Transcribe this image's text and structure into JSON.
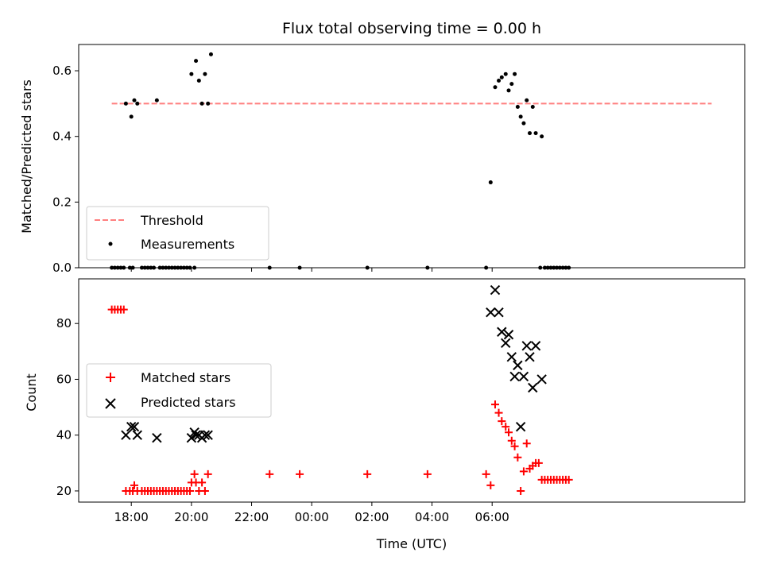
{
  "title": "Flux total observing time = 0.00 h",
  "colors": {
    "threshold": "#ff7f7f",
    "measurement": "#000000",
    "matched": "#ff0000",
    "predicted": "#000000"
  },
  "chart_data": [
    {
      "type": "scatter",
      "ylabel": "Matched/Predicted stars",
      "xlabel": "",
      "xlim": [
        -0.75,
        21.4
      ],
      "ylim": [
        0,
        0.68
      ],
      "x_unit": "hours since 17:00 UTC",
      "x_tick_values": [
        1,
        3,
        5,
        7,
        9,
        11,
        13
      ],
      "y_ticks": [
        "0.0",
        "0.2",
        "0.4",
        "0.6"
      ],
      "y_tick_values": [
        0,
        0.2,
        0.4,
        0.6
      ],
      "legend_position": "lower-left",
      "threshold": {
        "name": "Threshold",
        "value": 0.5,
        "x_range": [
          0.35,
          20.3
        ]
      },
      "series": [
        {
          "name": "Measurements",
          "points": [
            [
              0.35,
              0
            ],
            [
              0.45,
              0
            ],
            [
              0.55,
              0
            ],
            [
              0.65,
              0
            ],
            [
              0.75,
              0
            ],
            [
              0.82,
              0.5
            ],
            [
              0.95,
              0
            ],
            [
              1.05,
              0
            ],
            [
              1.0,
              0.46
            ],
            [
              1.1,
              0.51
            ],
            [
              1.2,
              0.5
            ],
            [
              1.35,
              0
            ],
            [
              1.45,
              0
            ],
            [
              1.55,
              0
            ],
            [
              1.65,
              0
            ],
            [
              1.75,
              0
            ],
            [
              1.85,
              0.51
            ],
            [
              1.95,
              0
            ],
            [
              2.05,
              0
            ],
            [
              2.15,
              0
            ],
            [
              2.25,
              0
            ],
            [
              2.35,
              0
            ],
            [
              2.45,
              0
            ],
            [
              2.55,
              0
            ],
            [
              2.65,
              0
            ],
            [
              2.75,
              0
            ],
            [
              2.85,
              0
            ],
            [
              2.95,
              0
            ],
            [
              3.0,
              0.59
            ],
            [
              3.1,
              0
            ],
            [
              3.15,
              0.63
            ],
            [
              3.25,
              0.57
            ],
            [
              3.35,
              0.5
            ],
            [
              3.45,
              0.59
            ],
            [
              3.55,
              0.5
            ],
            [
              3.65,
              0.65
            ],
            [
              5.6,
              0
            ],
            [
              6.6,
              0
            ],
            [
              8.85,
              0
            ],
            [
              10.85,
              0
            ],
            [
              12.8,
              0
            ],
            [
              12.95,
              0.26
            ],
            [
              13.1,
              0.55
            ],
            [
              13.22,
              0.57
            ],
            [
              13.32,
              0.58
            ],
            [
              13.45,
              0.59
            ],
            [
              13.55,
              0.54
            ],
            [
              13.65,
              0.56
            ],
            [
              13.75,
              0.59
            ],
            [
              13.85,
              0.49
            ],
            [
              13.95,
              0.46
            ],
            [
              14.05,
              0.44
            ],
            [
              14.15,
              0.51
            ],
            [
              14.25,
              0.41
            ],
            [
              14.35,
              0.49
            ],
            [
              14.45,
              0.41
            ],
            [
              14.6,
              0
            ],
            [
              14.65,
              0.4
            ],
            [
              14.75,
              0
            ],
            [
              14.85,
              0
            ],
            [
              14.95,
              0
            ],
            [
              15.05,
              0
            ],
            [
              15.15,
              0
            ],
            [
              15.25,
              0
            ],
            [
              15.35,
              0
            ],
            [
              15.45,
              0
            ],
            [
              15.55,
              0
            ]
          ]
        }
      ]
    },
    {
      "type": "scatter",
      "ylabel": "Count",
      "xlabel": "Time (UTC)",
      "xlim": [
        -0.75,
        21.4
      ],
      "ylim": [
        16,
        96
      ],
      "x_unit": "hours since 17:00 UTC",
      "x_ticks": [
        "18:00",
        "20:00",
        "22:00",
        "00:00",
        "02:00",
        "04:00",
        "06:00"
      ],
      "x_tick_values": [
        1,
        3,
        5,
        7,
        9,
        11,
        13
      ],
      "y_ticks": [
        "20",
        "40",
        "60",
        "80"
      ],
      "y_tick_values": [
        20,
        40,
        60,
        80
      ],
      "legend_position": "center-left",
      "series": [
        {
          "name": "Matched stars",
          "marker": "plus",
          "points": [
            [
              0.35,
              85
            ],
            [
              0.45,
              85
            ],
            [
              0.55,
              85
            ],
            [
              0.65,
              85
            ],
            [
              0.75,
              85
            ],
            [
              0.82,
              20
            ],
            [
              0.95,
              20
            ],
            [
              1.05,
              20
            ],
            [
              1.1,
              22
            ],
            [
              1.2,
              20
            ],
            [
              1.35,
              20
            ],
            [
              1.45,
              20
            ],
            [
              1.55,
              20
            ],
            [
              1.65,
              20
            ],
            [
              1.75,
              20
            ],
            [
              1.85,
              20
            ],
            [
              1.95,
              20
            ],
            [
              2.05,
              20
            ],
            [
              2.15,
              20
            ],
            [
              2.25,
              20
            ],
            [
              2.35,
              20
            ],
            [
              2.45,
              20
            ],
            [
              2.55,
              20
            ],
            [
              2.65,
              20
            ],
            [
              2.75,
              20
            ],
            [
              2.85,
              20
            ],
            [
              2.95,
              20
            ],
            [
              3.0,
              23
            ],
            [
              3.1,
              26
            ],
            [
              3.15,
              23
            ],
            [
              3.25,
              20
            ],
            [
              3.35,
              23
            ],
            [
              3.45,
              20
            ],
            [
              3.55,
              26
            ],
            [
              5.6,
              26
            ],
            [
              6.6,
              26
            ],
            [
              8.85,
              26
            ],
            [
              10.85,
              26
            ],
            [
              12.8,
              26
            ],
            [
              12.95,
              22
            ],
            [
              13.1,
              51
            ],
            [
              13.22,
              48
            ],
            [
              13.32,
              45
            ],
            [
              13.45,
              43
            ],
            [
              13.55,
              41
            ],
            [
              13.65,
              38
            ],
            [
              13.75,
              36
            ],
            [
              13.85,
              32
            ],
            [
              13.95,
              20
            ],
            [
              14.05,
              27
            ],
            [
              14.15,
              37
            ],
            [
              14.25,
              28
            ],
            [
              14.35,
              29
            ],
            [
              14.45,
              30
            ],
            [
              14.55,
              30
            ],
            [
              14.65,
              24
            ],
            [
              14.75,
              24
            ],
            [
              14.85,
              24
            ],
            [
              14.95,
              24
            ],
            [
              15.05,
              24
            ],
            [
              15.15,
              24
            ],
            [
              15.25,
              24
            ],
            [
              15.35,
              24
            ],
            [
              15.45,
              24
            ],
            [
              15.55,
              24
            ]
          ]
        },
        {
          "name": "Predicted stars",
          "marker": "x",
          "points": [
            [
              0.82,
              40
            ],
            [
              1.0,
              43
            ],
            [
              1.1,
              43
            ],
            [
              1.2,
              40
            ],
            [
              1.85,
              39
            ],
            [
              3.0,
              39
            ],
            [
              3.1,
              41
            ],
            [
              3.15,
              40
            ],
            [
              3.25,
              40
            ],
            [
              3.35,
              39
            ],
            [
              3.45,
              40
            ],
            [
              3.55,
              40
            ],
            [
              12.95,
              84
            ],
            [
              13.1,
              92
            ],
            [
              13.22,
              84
            ],
            [
              13.32,
              77
            ],
            [
              13.45,
              73
            ],
            [
              13.55,
              76
            ],
            [
              13.65,
              68
            ],
            [
              13.75,
              61
            ],
            [
              13.85,
              65
            ],
            [
              13.95,
              43
            ],
            [
              14.05,
              61
            ],
            [
              14.15,
              72
            ],
            [
              14.25,
              68
            ],
            [
              14.35,
              57
            ],
            [
              14.45,
              72
            ],
            [
              14.65,
              60
            ]
          ]
        }
      ]
    }
  ]
}
